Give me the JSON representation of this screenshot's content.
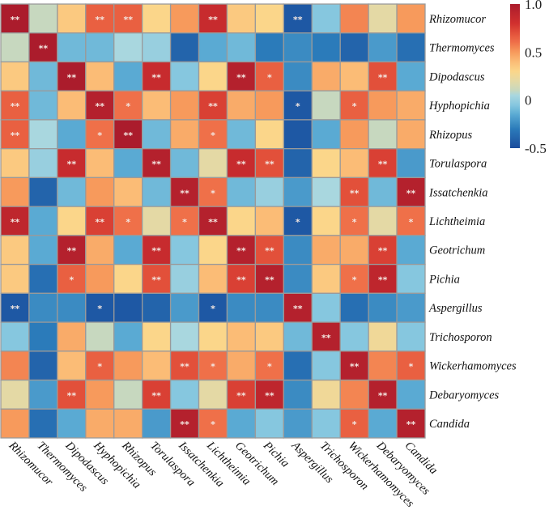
{
  "chart_data": {
    "type": "heatmap",
    "title": "",
    "xlabel": "",
    "ylabel": "",
    "colormap": "RdYlBu (reversed)",
    "colorbar": {
      "range": [
        -0.5,
        1.0
      ],
      "ticks": [
        1.0,
        0.5,
        0,
        -0.5
      ],
      "tick_labels": [
        "1.0",
        "0.5",
        "0",
        "-0.5"
      ],
      "placement": "right"
    },
    "color_stops": [
      {
        "value": -0.5,
        "color": "#1a4c9c"
      },
      {
        "value": -0.3,
        "color": "#2b7bba"
      },
      {
        "value": -0.15,
        "color": "#5aaad3"
      },
      {
        "value": -0.05,
        "color": "#86c7df"
      },
      {
        "value": 0.05,
        "color": "#a9d7df"
      },
      {
        "value": 0.1,
        "color": "#c7d8bf"
      },
      {
        "value": 0.2,
        "color": "#e4d9a5"
      },
      {
        "value": 0.3,
        "color": "#fbd68a"
      },
      {
        "value": 0.4,
        "color": "#fbbc76"
      },
      {
        "value": 0.5,
        "color": "#f79a5c"
      },
      {
        "value": 0.6,
        "color": "#ef7049"
      },
      {
        "value": 0.7,
        "color": "#e2503a"
      },
      {
        "value": 0.8,
        "color": "#d0302e"
      },
      {
        "value": 1.0,
        "color": "#ab1c2c"
      }
    ],
    "row_labels": [
      "Rhizomucor",
      "Thermomyces",
      "Dipodascus",
      "Hyphopichia",
      "Rhizopus",
      "Torulaspora",
      "Issatchenkia",
      "Lichtheimia",
      "Geotrichum",
      "Pichia",
      "Aspergillus",
      "Trichosporon",
      "Wickerhamomyces",
      "Debaryomyces",
      "Candida"
    ],
    "col_labels": [
      "Rhizomucor",
      "Thermomyces",
      "Dipodascus",
      "Hyphopichia",
      "Rhizopus",
      "Torulaspora",
      "Issatchenkia",
      "Lichtheimia",
      "Geotrichum",
      "Pichia",
      "Aspergillus",
      "Trichosporon",
      "Wickerhamomyces",
      "Debaryomyces",
      "Candida"
    ],
    "values": [
      [
        1.0,
        0.1,
        0.35,
        0.65,
        0.65,
        0.3,
        0.5,
        0.85,
        0.35,
        0.3,
        -0.45,
        -0.05,
        0.55,
        0.2,
        0.5
      ],
      [
        0.1,
        1.0,
        -0.1,
        -0.1,
        0.05,
        0.0,
        -0.4,
        -0.15,
        -0.1,
        -0.3,
        -0.25,
        -0.3,
        -0.4,
        -0.2,
        -0.35
      ],
      [
        0.35,
        -0.1,
        1.0,
        0.4,
        -0.15,
        0.85,
        -0.05,
        0.3,
        0.95,
        0.65,
        -0.25,
        0.45,
        0.4,
        0.7,
        -0.15
      ],
      [
        0.65,
        -0.1,
        0.4,
        0.95,
        0.6,
        0.4,
        0.5,
        0.75,
        0.45,
        0.5,
        -0.45,
        0.1,
        0.65,
        0.5,
        0.45
      ],
      [
        0.65,
        0.05,
        -0.15,
        0.6,
        1.0,
        -0.1,
        0.45,
        0.6,
        -0.1,
        0.3,
        -0.45,
        -0.15,
        0.5,
        0.1,
        0.45
      ],
      [
        0.35,
        0.0,
        0.85,
        0.4,
        -0.15,
        0.95,
        -0.1,
        0.2,
        0.85,
        0.7,
        -0.4,
        0.3,
        0.4,
        0.75,
        -0.2
      ],
      [
        0.5,
        -0.4,
        -0.1,
        0.5,
        0.4,
        -0.1,
        0.95,
        0.6,
        -0.1,
        0.0,
        -0.2,
        0.05,
        0.7,
        -0.1,
        0.95
      ],
      [
        0.9,
        -0.15,
        0.3,
        0.75,
        0.6,
        0.2,
        0.6,
        0.95,
        0.3,
        0.4,
        -0.45,
        0.3,
        0.6,
        0.2,
        0.6
      ],
      [
        0.35,
        -0.15,
        0.95,
        0.45,
        -0.15,
        0.85,
        -0.05,
        0.3,
        0.95,
        0.7,
        -0.25,
        0.45,
        0.45,
        0.75,
        -0.15
      ],
      [
        0.35,
        -0.35,
        0.65,
        0.5,
        0.3,
        0.7,
        0.0,
        0.4,
        0.75,
        0.95,
        -0.25,
        0.35,
        0.6,
        0.9,
        -0.05
      ],
      [
        -0.45,
        -0.25,
        -0.25,
        -0.45,
        -0.45,
        -0.4,
        -0.2,
        -0.45,
        -0.25,
        -0.25,
        0.95,
        -0.05,
        -0.35,
        -0.25,
        -0.2
      ],
      [
        -0.05,
        -0.3,
        0.45,
        0.1,
        -0.15,
        0.3,
        0.05,
        0.3,
        0.4,
        0.35,
        -0.1,
        0.95,
        -0.05,
        0.25,
        -0.05
      ],
      [
        0.55,
        -0.4,
        0.4,
        0.65,
        0.5,
        0.4,
        0.7,
        0.6,
        0.45,
        0.6,
        -0.35,
        -0.05,
        0.95,
        0.55,
        0.65
      ],
      [
        0.2,
        -0.2,
        0.7,
        0.5,
        0.1,
        0.75,
        -0.05,
        0.2,
        0.75,
        0.9,
        -0.25,
        0.25,
        0.55,
        0.95,
        -0.15
      ],
      [
        0.5,
        -0.35,
        -0.15,
        0.45,
        0.45,
        -0.2,
        0.95,
        0.6,
        -0.15,
        -0.05,
        -0.2,
        -0.05,
        0.65,
        -0.15,
        0.95
      ]
    ],
    "significance": [
      [
        "**",
        "",
        "",
        "**",
        "**",
        "",
        "",
        "**",
        "",
        "",
        "**",
        "",
        "",
        "",
        ""
      ],
      [
        "",
        "**",
        "",
        "",
        "",
        "",
        "",
        "",
        "",
        "",
        "",
        "",
        "",
        "",
        ""
      ],
      [
        "",
        "",
        "**",
        "",
        "",
        "**",
        "",
        "",
        "**",
        "*",
        "",
        "",
        "",
        "**",
        ""
      ],
      [
        "**",
        "",
        "",
        "**",
        "*",
        "",
        "",
        "**",
        "",
        "",
        "*",
        "",
        "*",
        "",
        ""
      ],
      [
        "**",
        "",
        "",
        "*",
        "**",
        "",
        "",
        "*",
        "",
        "",
        "",
        "",
        "",
        "",
        ""
      ],
      [
        "",
        "",
        "**",
        "",
        "",
        "**",
        "",
        "",
        "**",
        "**",
        "",
        "",
        "",
        "**",
        ""
      ],
      [
        "",
        "",
        "",
        "",
        "",
        "",
        "**",
        "*",
        "",
        "",
        "",
        "",
        "**",
        "",
        "**"
      ],
      [
        "**",
        "",
        "",
        "**",
        "*",
        "",
        "*",
        "**",
        "",
        "",
        "*",
        "",
        "*",
        "",
        "*"
      ],
      [
        "",
        "",
        "**",
        "",
        "",
        "**",
        "",
        "",
        "**",
        "**",
        "",
        "",
        "",
        "**",
        ""
      ],
      [
        "",
        "",
        "*",
        "",
        "",
        "**",
        "",
        "",
        "**",
        "**",
        "",
        "",
        "*",
        "**",
        ""
      ],
      [
        "**",
        "",
        "",
        "*",
        "",
        "",
        "",
        "*",
        "",
        "",
        "**",
        "",
        "",
        "",
        ""
      ],
      [
        "",
        "",
        "",
        "",
        "",
        "",
        "",
        "",
        "",
        "",
        "",
        "**",
        "",
        "",
        ""
      ],
      [
        "",
        "",
        "",
        "*",
        "",
        "",
        "**",
        "*",
        "",
        "*",
        "",
        "",
        "**",
        "",
        "*"
      ],
      [
        "",
        "",
        "**",
        "",
        "",
        "**",
        "",
        "",
        "**",
        "**",
        "",
        "",
        "",
        "**",
        ""
      ],
      [
        "",
        "",
        "",
        "",
        "",
        "",
        "**",
        "*",
        "",
        "",
        "",
        "",
        "*",
        "",
        "**"
      ]
    ],
    "grid": true,
    "grid_color": "#9a9a9a"
  }
}
